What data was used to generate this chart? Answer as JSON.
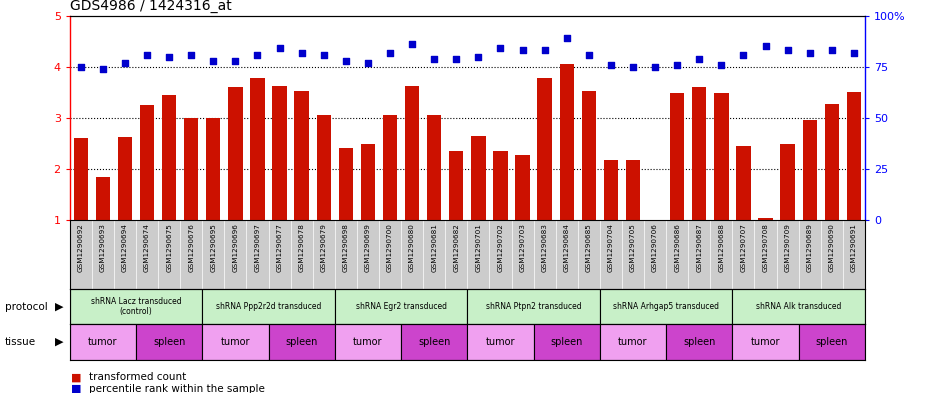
{
  "title": "GDS4986 / 1424316_at",
  "sample_ids": [
    "GSM1290692",
    "GSM1290693",
    "GSM1290694",
    "GSM1290674",
    "GSM1290675",
    "GSM1290676",
    "GSM1290695",
    "GSM1290696",
    "GSM1290697",
    "GSM1290677",
    "GSM1290678",
    "GSM1290679",
    "GSM1290698",
    "GSM1290699",
    "GSM1290700",
    "GSM1290680",
    "GSM1290681",
    "GSM1290682",
    "GSM1290701",
    "GSM1290702",
    "GSM1290703",
    "GSM1290683",
    "GSM1290684",
    "GSM1290685",
    "GSM1290704",
    "GSM1290705",
    "GSM1290706",
    "GSM1290686",
    "GSM1290687",
    "GSM1290688",
    "GSM1290707",
    "GSM1290708",
    "GSM1290709",
    "GSM1290689",
    "GSM1290690",
    "GSM1290691"
  ],
  "bar_values": [
    2.6,
    1.85,
    2.62,
    3.25,
    3.45,
    3.0,
    3.0,
    3.6,
    3.78,
    3.63,
    3.52,
    3.05,
    2.42,
    2.48,
    3.05,
    3.62,
    3.05,
    2.35,
    2.65,
    2.35,
    2.28,
    3.78,
    4.05,
    3.52,
    2.18,
    2.18,
    1.0,
    3.48,
    3.6,
    3.48,
    2.45,
    1.05,
    2.48,
    2.95,
    3.28,
    3.5
  ],
  "percentile_values": [
    75,
    74,
    77,
    81,
    80,
    81,
    78,
    78,
    81,
    84,
    82,
    81,
    78,
    77,
    82,
    86,
    79,
    79,
    80,
    84,
    83,
    83,
    89,
    81,
    76,
    75,
    75,
    76,
    79,
    76,
    81,
    85,
    83,
    82,
    83,
    82
  ],
  "protocols": [
    {
      "label": "shRNA Lacz transduced\n(control)",
      "start": 0,
      "end": 6,
      "color": "#c8f0c8"
    },
    {
      "label": "shRNA Ppp2r2d transduced",
      "start": 6,
      "end": 12,
      "color": "#c8f0c8"
    },
    {
      "label": "shRNA Egr2 transduced",
      "start": 12,
      "end": 18,
      "color": "#c8f0c8"
    },
    {
      "label": "shRNA Ptpn2 transduced",
      "start": 18,
      "end": 24,
      "color": "#c8f0c8"
    },
    {
      "label": "shRNA Arhgap5 transduced",
      "start": 24,
      "end": 30,
      "color": "#c8f0c8"
    },
    {
      "label": "shRNA Alk transduced",
      "start": 30,
      "end": 36,
      "color": "#c8f0c8"
    }
  ],
  "tissues": [
    {
      "label": "tumor",
      "start": 0,
      "end": 3,
      "color": "#f0a0f0"
    },
    {
      "label": "spleen",
      "start": 3,
      "end": 6,
      "color": "#cc44cc"
    },
    {
      "label": "tumor",
      "start": 6,
      "end": 9,
      "color": "#f0a0f0"
    },
    {
      "label": "spleen",
      "start": 9,
      "end": 12,
      "color": "#cc44cc"
    },
    {
      "label": "tumor",
      "start": 12,
      "end": 15,
      "color": "#f0a0f0"
    },
    {
      "label": "spleen",
      "start": 15,
      "end": 18,
      "color": "#cc44cc"
    },
    {
      "label": "tumor",
      "start": 18,
      "end": 21,
      "color": "#f0a0f0"
    },
    {
      "label": "spleen",
      "start": 21,
      "end": 24,
      "color": "#cc44cc"
    },
    {
      "label": "tumor",
      "start": 24,
      "end": 27,
      "color": "#f0a0f0"
    },
    {
      "label": "spleen",
      "start": 27,
      "end": 30,
      "color": "#cc44cc"
    },
    {
      "label": "tumor",
      "start": 30,
      "end": 33,
      "color": "#f0a0f0"
    },
    {
      "label": "spleen",
      "start": 33,
      "end": 36,
      "color": "#cc44cc"
    }
  ],
  "bar_color": "#cc1100",
  "dot_color": "#0000cc",
  "sample_box_color": "#cccccc"
}
